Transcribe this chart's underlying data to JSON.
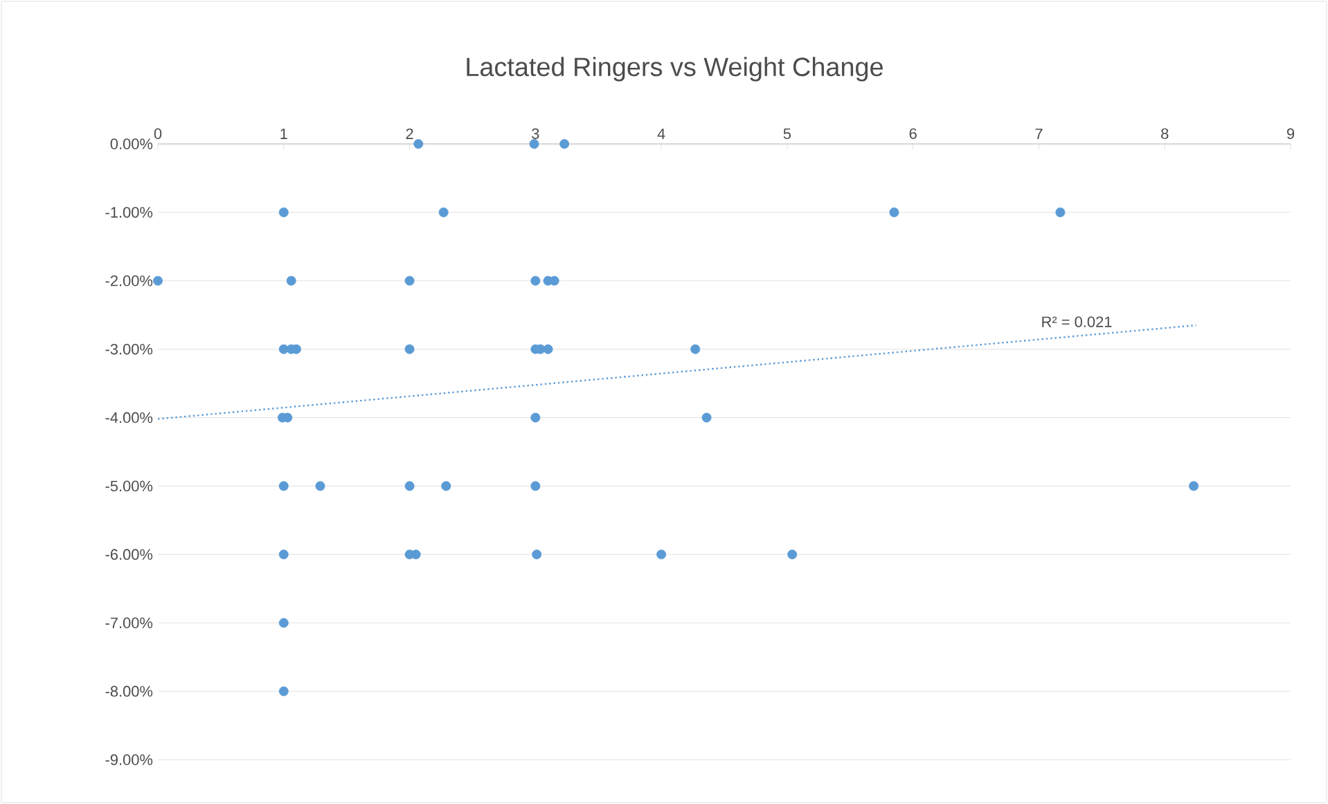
{
  "chart_data": {
    "type": "scatter",
    "title": "Lactated Ringers vs Weight Change",
    "xlim": [
      0,
      9
    ],
    "xticks": [
      0,
      1,
      2,
      3,
      4,
      5,
      6,
      7,
      8,
      9
    ],
    "ylim": [
      -9,
      0
    ],
    "yticks": [
      {
        "value": 0,
        "label": "0.00%"
      },
      {
        "value": -1,
        "label": "-1.00%"
      },
      {
        "value": -2,
        "label": "-2.00%"
      },
      {
        "value": -3,
        "label": "-3.00%"
      },
      {
        "value": -4,
        "label": "-4.00%"
      },
      {
        "value": -5,
        "label": "-5.00%"
      },
      {
        "value": -6,
        "label": "-6.00%"
      },
      {
        "value": -7,
        "label": "-7.00%"
      },
      {
        "value": -8,
        "label": "-8.00%"
      },
      {
        "value": -9,
        "label": "-9.00%"
      }
    ],
    "grid": "y",
    "marker": "circle",
    "annotations": [
      {
        "text": "R² = 0.021",
        "x": 7.3,
        "y": -2.75
      }
    ],
    "series": [
      {
        "color": "#5b9bd5",
        "x": [
          2.07,
          2.99,
          3.23,
          1.0,
          2.27,
          5.85,
          7.17,
          0,
          1.06,
          2.0,
          3.0,
          3.1,
          3.15,
          1.0,
          1.06,
          1.1,
          2.0,
          3.0,
          3.04,
          3.1,
          4.27,
          0.99,
          1.03,
          3.0,
          4.36,
          1.0,
          1.29,
          2.0,
          2.29,
          3.0,
          8.23,
          1.0,
          2.0,
          2.05,
          3.01,
          4.0,
          5.04,
          1.0,
          1.0
        ],
        "values": [
          0,
          0,
          0,
          -1,
          -1,
          -1,
          -1,
          -2,
          -2,
          -2,
          -2,
          -2,
          -2,
          -3,
          -3,
          -3,
          -3,
          -3,
          -3,
          -3,
          -3,
          -4,
          -4,
          -4,
          -4,
          -5,
          -5,
          -5,
          -5,
          -5,
          -5,
          -6,
          -6,
          -6,
          -6,
          -6,
          -6,
          -7,
          -8
        ]
      },
      {
        "type": "line",
        "line_style": "dotted",
        "marker": "none",
        "color": "#5b9bd5",
        "x": [
          0,
          8.25
        ],
        "values": [
          -4.02,
          -2.65
        ]
      }
    ]
  }
}
